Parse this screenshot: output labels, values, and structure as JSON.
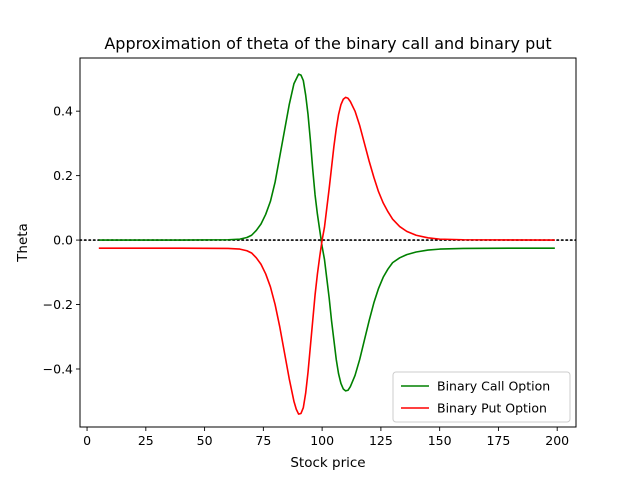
{
  "chart_data": {
    "type": "line",
    "title": "Approximation of theta of the binary call and binary put",
    "xlabel": "Stock price",
    "ylabel": "Theta",
    "xlim": [
      -3,
      208
    ],
    "ylim": [
      -0.58,
      0.565
    ],
    "xticks": [
      0,
      25,
      50,
      75,
      100,
      125,
      150,
      175,
      200
    ],
    "yticks": [
      -0.4,
      -0.2,
      0.0,
      0.2,
      0.4
    ],
    "ytick_labels": [
      "−0.4",
      "−0.2",
      "0.0",
      "0.2",
      "0.4"
    ],
    "grid": false,
    "reference_line": {
      "y": 0.0,
      "style": "dotted",
      "color": "#000000"
    },
    "legend": {
      "placement": "lower-right"
    },
    "series": [
      {
        "name": "Binary Call Option",
        "color": "#008000",
        "points": [
          [
            5,
            0.0
          ],
          [
            40,
            0.0
          ],
          [
            60,
            0.001
          ],
          [
            65,
            0.003
          ],
          [
            68,
            0.008
          ],
          [
            70,
            0.015
          ],
          [
            72,
            0.03
          ],
          [
            74,
            0.05
          ],
          [
            76,
            0.08
          ],
          [
            78,
            0.12
          ],
          [
            80,
            0.18
          ],
          [
            82,
            0.26
          ],
          [
            84,
            0.34
          ],
          [
            86,
            0.42
          ],
          [
            88,
            0.485
          ],
          [
            90,
            0.515
          ],
          [
            91,
            0.512
          ],
          [
            92,
            0.495
          ],
          [
            93,
            0.45
          ],
          [
            94,
            0.39
          ],
          [
            95,
            0.31
          ],
          [
            96,
            0.22
          ],
          [
            97,
            0.14
          ],
          [
            98,
            0.08
          ],
          [
            99,
            0.03
          ],
          [
            100,
            -0.02
          ],
          [
            101,
            -0.06
          ],
          [
            102,
            -0.12
          ],
          [
            103,
            -0.18
          ],
          [
            104,
            -0.25
          ],
          [
            105,
            -0.31
          ],
          [
            106,
            -0.37
          ],
          [
            107,
            -0.415
          ],
          [
            108,
            -0.445
          ],
          [
            109,
            -0.462
          ],
          [
            110,
            -0.468
          ],
          [
            111,
            -0.466
          ],
          [
            112,
            -0.455
          ],
          [
            114,
            -0.42
          ],
          [
            116,
            -0.37
          ],
          [
            118,
            -0.31
          ],
          [
            120,
            -0.25
          ],
          [
            122,
            -0.195
          ],
          [
            124,
            -0.15
          ],
          [
            126,
            -0.115
          ],
          [
            128,
            -0.09
          ],
          [
            130,
            -0.07
          ],
          [
            133,
            -0.055
          ],
          [
            136,
            -0.045
          ],
          [
            140,
            -0.037
          ],
          [
            145,
            -0.031
          ],
          [
            150,
            -0.028
          ],
          [
            160,
            -0.026
          ],
          [
            180,
            -0.025
          ],
          [
            199,
            -0.025
          ]
        ]
      },
      {
        "name": "Binary Put Option",
        "color": "#ff0000",
        "points": [
          [
            5,
            -0.025
          ],
          [
            40,
            -0.025
          ],
          [
            60,
            -0.026
          ],
          [
            65,
            -0.028
          ],
          [
            68,
            -0.033
          ],
          [
            70,
            -0.04
          ],
          [
            72,
            -0.055
          ],
          [
            74,
            -0.075
          ],
          [
            76,
            -0.105
          ],
          [
            78,
            -0.145
          ],
          [
            80,
            -0.2
          ],
          [
            82,
            -0.27
          ],
          [
            84,
            -0.35
          ],
          [
            86,
            -0.43
          ],
          [
            88,
            -0.5
          ],
          [
            89,
            -0.525
          ],
          [
            90,
            -0.54
          ],
          [
            91,
            -0.538
          ],
          [
            92,
            -0.52
          ],
          [
            93,
            -0.475
          ],
          [
            94,
            -0.41
          ],
          [
            95,
            -0.33
          ],
          [
            96,
            -0.25
          ],
          [
            97,
            -0.17
          ],
          [
            98,
            -0.105
          ],
          [
            99,
            -0.05
          ],
          [
            100,
            0.0
          ],
          [
            101,
            0.04
          ],
          [
            102,
            0.1
          ],
          [
            103,
            0.16
          ],
          [
            104,
            0.225
          ],
          [
            105,
            0.29
          ],
          [
            106,
            0.345
          ],
          [
            107,
            0.39
          ],
          [
            108,
            0.42
          ],
          [
            109,
            0.437
          ],
          [
            110,
            0.443
          ],
          [
            111,
            0.44
          ],
          [
            112,
            0.43
          ],
          [
            114,
            0.4
          ],
          [
            116,
            0.355
          ],
          [
            118,
            0.3
          ],
          [
            120,
            0.245
          ],
          [
            122,
            0.195
          ],
          [
            124,
            0.15
          ],
          [
            126,
            0.115
          ],
          [
            128,
            0.088
          ],
          [
            130,
            0.065
          ],
          [
            133,
            0.042
          ],
          [
            136,
            0.027
          ],
          [
            140,
            0.015
          ],
          [
            145,
            0.007
          ],
          [
            150,
            0.003
          ],
          [
            160,
            0.001
          ],
          [
            199,
            0.0
          ]
        ]
      }
    ]
  }
}
